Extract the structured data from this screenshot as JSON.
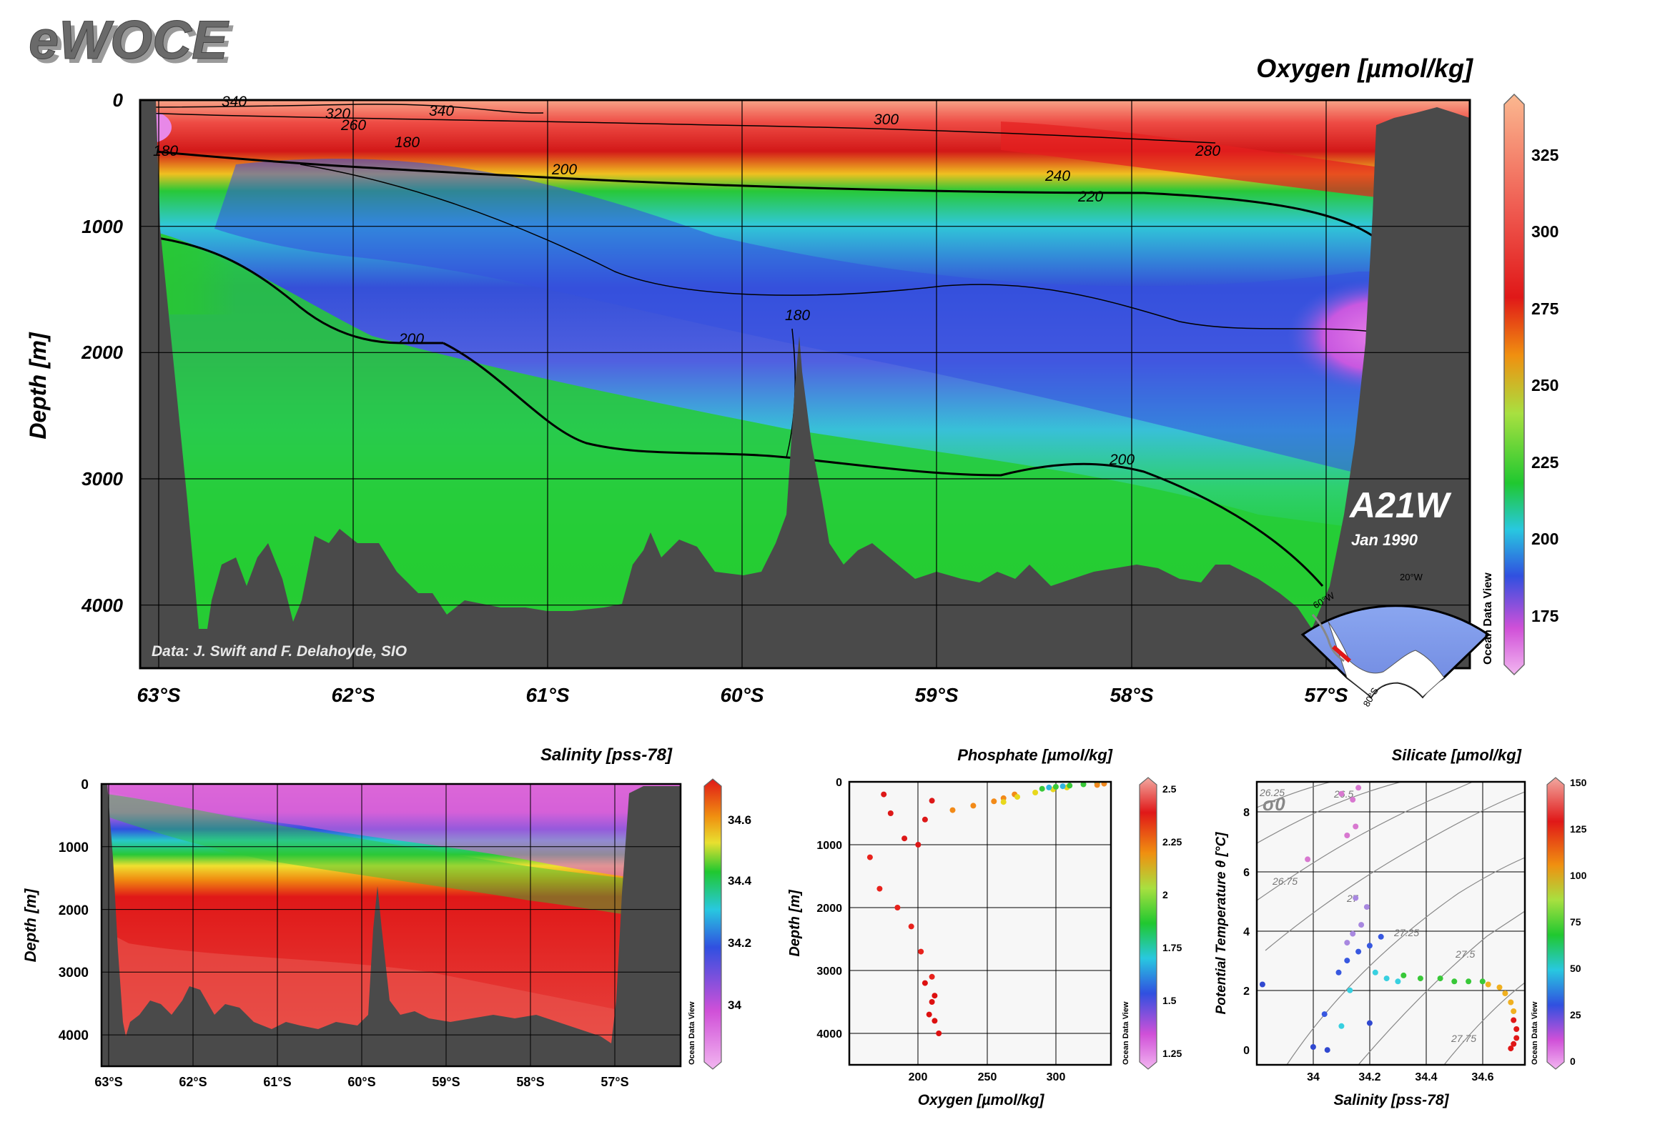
{
  "logo_text": "eWOCE",
  "section_code": "A21W",
  "section_date": "Jan 1990",
  "data_credit": "Data: J. Swift and F. Delahoyde, SIO",
  "odv_label": "Ocean Data View",
  "inset_map": {
    "label_lon": "20°W",
    "label_left": "60°W",
    "label_bottom": "80°S"
  },
  "colors": {
    "topography": "#4a4a4a",
    "frame": "#000000",
    "sea_surface_high": "#f7a98a",
    "low_oxygen": "#e060d0"
  },
  "chart_data": [
    {
      "id": "oxygen_section",
      "type": "heatmap",
      "title": "Oxygen [µmol/kg]",
      "ylabel": "Depth [m]",
      "xticks": [
        "63°S",
        "62°S",
        "61°S",
        "60°S",
        "59°S",
        "58°S",
        "57°S"
      ],
      "yticks": [
        "0",
        "1000",
        "2000",
        "3000",
        "4000"
      ],
      "ylim": [
        0,
        4500
      ],
      "colorbar": {
        "ticks": [
          "175",
          "200",
          "225",
          "250",
          "275",
          "300",
          "325"
        ],
        "range": [
          160,
          345
        ]
      },
      "contour_labels": [
        "340",
        "320",
        "260",
        "340",
        "300",
        "280",
        "180",
        "180",
        "200",
        "240",
        "220",
        "180",
        "200",
        "200"
      ]
    },
    {
      "id": "salinity_section",
      "type": "heatmap",
      "title": "Salinity [pss-78]",
      "ylabel": "Depth [m]",
      "xticks": [
        "63°S",
        "62°S",
        "61°S",
        "60°S",
        "59°S",
        "58°S",
        "57°S"
      ],
      "yticks": [
        "0",
        "1000",
        "2000",
        "3000",
        "4000"
      ],
      "ylim": [
        0,
        4500
      ],
      "colorbar": {
        "ticks": [
          "34",
          "34.2",
          "34.4",
          "34.6"
        ],
        "range": [
          33.85,
          34.72
        ]
      }
    },
    {
      "id": "phosphate_scatter",
      "type": "scatter",
      "title": "Phosphate [µmol/kg]",
      "xlabel": "Oxygen [µmol/kg]",
      "ylabel": "Depth [m]",
      "xticks": [
        "200",
        "250",
        "300"
      ],
      "yticks": [
        "0",
        "1000",
        "2000",
        "3000",
        "4000"
      ],
      "xlim": [
        150,
        340
      ],
      "ylim": [
        0,
        4500
      ],
      "colorbar": {
        "ticks": [
          "1.25",
          "1.5",
          "1.75",
          "2",
          "2.25",
          "2.5"
        ],
        "range": [
          1.2,
          2.55
        ]
      },
      "groups": [
        {
          "x": [
            175,
            180,
            190,
            200,
            205,
            210
          ],
          "y": [
            200,
            500,
            900,
            1000,
            600,
            300
          ],
          "color": "#dd1818"
        },
        {
          "x": [
            165,
            172,
            185,
            195,
            202,
            210
          ],
          "y": [
            1200,
            1700,
            2000,
            2300,
            2700,
            3100
          ],
          "color": "#e8221c"
        },
        {
          "x": [
            205,
            210,
            212,
            215,
            208,
            212
          ],
          "y": [
            3200,
            3500,
            3800,
            4000,
            3700,
            3400
          ],
          "color": "#dd1010"
        },
        {
          "x": [
            225,
            240,
            255,
            262,
            270
          ],
          "y": [
            450,
            380,
            310,
            260,
            200
          ],
          "color": "#f28a18"
        },
        {
          "x": [
            262,
            272,
            285,
            298,
            308
          ],
          "y": [
            320,
            240,
            170,
            120,
            90
          ],
          "color": "#e8d81c"
        },
        {
          "x": [
            290,
            300,
            310,
            320,
            330
          ],
          "y": [
            110,
            80,
            60,
            40,
            20
          ],
          "color": "#38c838"
        },
        {
          "x": [
            295,
            305
          ],
          "y": [
            90,
            70
          ],
          "color": "#30b4e0"
        },
        {
          "x": [
            330,
            335
          ],
          "y": [
            50,
            30
          ],
          "color": "#f08a20"
        }
      ]
    },
    {
      "id": "silicate_ts",
      "type": "scatter",
      "title": "Silicate [µmol/kg]",
      "xlabel": "Salinity [pss-78]",
      "ylabel": "Potential Temperature θ [°C]",
      "xticks": [
        "34",
        "34.2",
        "34.4",
        "34.6"
      ],
      "yticks": [
        "0",
        "2",
        "4",
        "6",
        "8"
      ],
      "xlim": [
        33.8,
        34.75
      ],
      "ylim": [
        -0.5,
        9
      ],
      "sigma_label": "σ0",
      "isopycnal_labels": [
        "26.25",
        "26.5",
        "26.75",
        "27",
        "27.25",
        "27.5",
        "27.75"
      ],
      "colorbar": {
        "ticks": [
          "0",
          "25",
          "50",
          "75",
          "100",
          "125",
          "150"
        ],
        "range": [
          0,
          150
        ]
      },
      "groups": [
        {
          "x": [
            34.1,
            34.14,
            34.12,
            34.15,
            33.98,
            34.16
          ],
          "y": [
            8.6,
            8.4,
            7.2,
            7.5,
            6.4,
            8.8
          ],
          "color": "#d878d0"
        },
        {
          "x": [
            34.12,
            34.14,
            34.17,
            34.19,
            34.15
          ],
          "y": [
            3.6,
            3.9,
            4.2,
            4.8,
            5.1
          ],
          "color": "#a888e0"
        },
        {
          "x": [
            34.04,
            34.09,
            34.12,
            34.16,
            34.2,
            34.24
          ],
          "y": [
            1.2,
            2.6,
            3.0,
            3.3,
            3.5,
            3.8
          ],
          "color": "#3858e0"
        },
        {
          "x": [
            34.22,
            34.26,
            34.3,
            34.1,
            34.13
          ],
          "y": [
            2.6,
            2.4,
            2.3,
            0.8,
            2.0
          ],
          "color": "#38d0e0"
        },
        {
          "x": [
            34.32,
            34.38,
            34.45,
            34.5,
            34.55,
            34.6
          ],
          "y": [
            2.5,
            2.4,
            2.4,
            2.3,
            2.3,
            2.3
          ],
          "color": "#38c838"
        },
        {
          "x": [
            34.62,
            34.66,
            34.68,
            34.7,
            34.71
          ],
          "y": [
            2.2,
            2.1,
            1.9,
            1.6,
            1.3
          ],
          "color": "#f0b020"
        },
        {
          "x": [
            34.71,
            34.72,
            34.72,
            34.71,
            34.7
          ],
          "y": [
            1.0,
            0.7,
            0.4,
            0.2,
            0.05
          ],
          "color": "#e01818"
        },
        {
          "x": [
            33.82,
            34.05,
            34.2,
            34.0
          ],
          "y": [
            2.2,
            0.0,
            0.9,
            0.1
          ],
          "color": "#3048d0"
        }
      ]
    }
  ]
}
